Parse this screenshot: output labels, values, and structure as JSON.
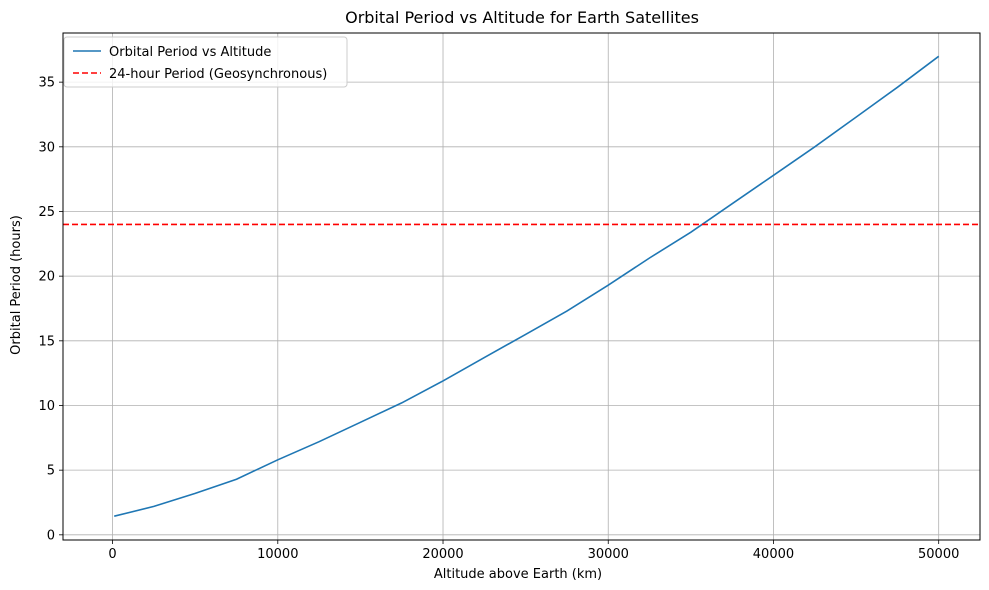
{
  "chart_data": {
    "type": "line",
    "title": "Orbital Period vs Altitude for Earth Satellites",
    "xlabel": "Altitude above Earth (km)",
    "ylabel": "Orbital Period (hours)",
    "xlim": [
      -3000,
      52500
    ],
    "ylim": [
      -0.4,
      38.8
    ],
    "x_ticks": [
      0,
      10000,
      20000,
      30000,
      40000,
      50000
    ],
    "x_tick_labels": [
      "0",
      "10000",
      "20000",
      "30000",
      "40000",
      "50000"
    ],
    "y_ticks": [
      0,
      5,
      10,
      15,
      20,
      25,
      30,
      35
    ],
    "y_tick_labels": [
      "0",
      "5",
      "10",
      "15",
      "20",
      "25",
      "30",
      "35"
    ],
    "grid": true,
    "legend_position": "top-left",
    "series": [
      {
        "name": "Orbital Period vs Altitude",
        "color": "#1f77b4",
        "style": "solid",
        "x": [
          100,
          2500,
          5000,
          7500,
          10000,
          12500,
          15000,
          17500,
          20000,
          22500,
          25000,
          27500,
          30000,
          32500,
          35000,
          37500,
          40000,
          42500,
          45000,
          47500,
          50000
        ],
        "y": [
          1.44,
          2.2,
          3.2,
          4.3,
          5.8,
          7.2,
          8.7,
          10.2,
          11.9,
          13.7,
          15.5,
          17.3,
          19.3,
          21.4,
          23.4,
          25.6,
          27.8,
          30.0,
          32.3,
          34.6,
          37.0
        ]
      },
      {
        "name": "24-hour Period (Geosynchronous)",
        "color": "#ff0000",
        "style": "dashed",
        "x": [
          -3000,
          52500
        ],
        "y": [
          24,
          24
        ]
      }
    ]
  }
}
